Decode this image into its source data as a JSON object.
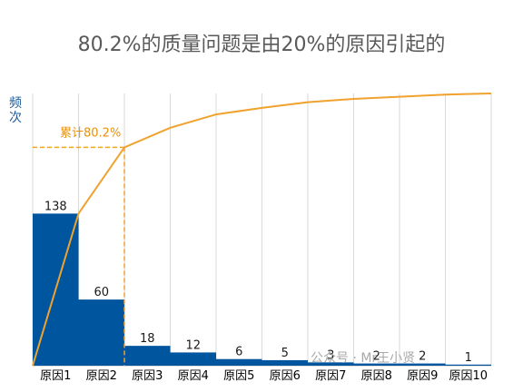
{
  "chart_data": {
    "type": "pareto",
    "title": "80.2%的质量问题是由20%的原因引起的",
    "ylabel": "频次",
    "categories": [
      "原因1",
      "原因2",
      "原因3",
      "原因4",
      "原因5",
      "原因6",
      "原因7",
      "原因8",
      "原因9",
      "原因10"
    ],
    "values": [
      138,
      60,
      18,
      12,
      6,
      5,
      3,
      2,
      2,
      1
    ],
    "cumulative_percent": [
      55.9,
      80.2,
      87.4,
      92.3,
      94.7,
      96.8,
      98.0,
      98.8,
      99.6,
      100.0
    ],
    "ylim": [
      0,
      247
    ],
    "annotation": {
      "text": "累计80.2%",
      "at_category": "原因2",
      "percent": 80.2
    },
    "bar_color": "#00559f",
    "line_color": "#f0a22e",
    "grid": "vertical"
  },
  "watermark": "公众号 · Mr王小贤"
}
